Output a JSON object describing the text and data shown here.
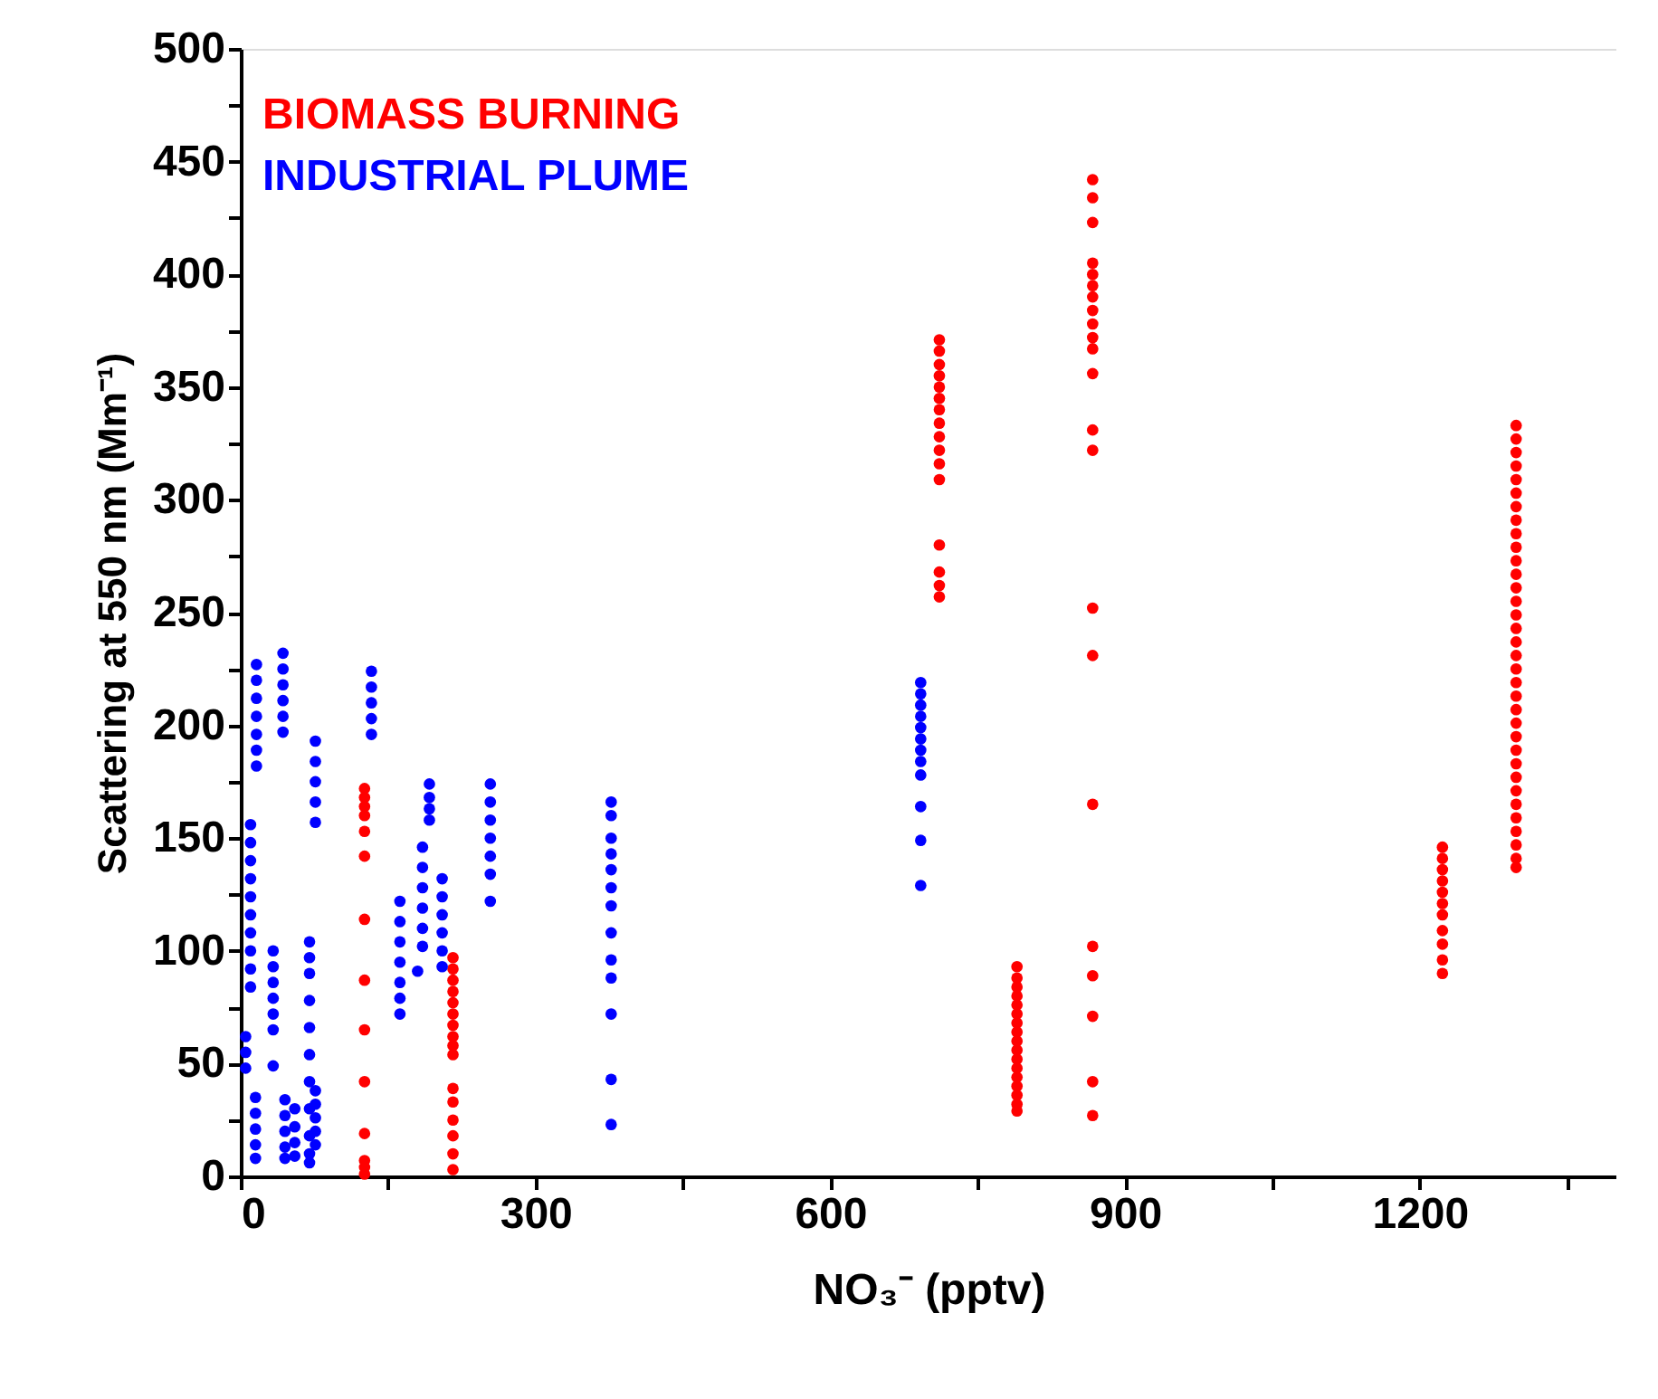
{
  "chart_data": {
    "type": "scatter",
    "xlabel": "NO₃⁻ (pptv)",
    "ylabel": "Scattering at 550 nm (Mm⁻¹)",
    "xlim": [
      0,
      1400
    ],
    "xticks": [
      0,
      {
        "value": 150,
        "label": null
      },
      300,
      {
        "value": 450,
        "label": null
      },
      600,
      {
        "value": 750,
        "label": null
      },
      900,
      {
        "value": 1050,
        "label": null
      },
      1200,
      {
        "value": 1350,
        "label": null
      }
    ],
    "ylim": [
      0,
      500
    ],
    "yticks": [
      0,
      {
        "value": 25,
        "label": null
      },
      50,
      {
        "value": 75,
        "label": null
      },
      100,
      {
        "value": 125,
        "label": null
      },
      150,
      {
        "value": 175,
        "label": null
      },
      200,
      {
        "value": 225,
        "label": null
      },
      250,
      {
        "value": 275,
        "label": null
      },
      300,
      {
        "value": 325,
        "label": null
      },
      350,
      {
        "value": 375,
        "label": null
      },
      400,
      {
        "value": 425,
        "label": null
      },
      450,
      {
        "value": 475,
        "label": null
      },
      500
    ],
    "grid": false,
    "legend": "top left",
    "marker": "circle",
    "series": [
      {
        "name": "BIOMASS BURNING",
        "color": "#ff0000",
        "x": [
          126,
          126,
          126,
          126,
          126,
          126,
          126,
          126,
          126,
          126,
          126,
          126,
          126,
          126,
          216,
          216,
          216,
          216,
          216,
          216,
          216,
          216,
          216,
          216,
          216,
          216,
          216,
          216,
          216,
          216,
          711,
          711,
          711,
          711,
          711,
          711,
          711,
          711,
          711,
          711,
          711,
          711,
          711,
          711,
          711,
          711,
          790,
          790,
          790,
          790,
          790,
          790,
          790,
          790,
          790,
          790,
          790,
          790,
          790,
          790,
          790,
          790,
          790,
          867,
          867,
          867,
          867,
          867,
          867,
          867,
          867,
          867,
          867,
          867,
          867,
          867,
          867,
          867,
          867,
          867,
          867,
          867,
          867,
          867,
          867,
          1223,
          1223,
          1223,
          1223,
          1223,
          1223,
          1223,
          1223,
          1223,
          1223,
          1223,
          1298,
          1298,
          1298,
          1298,
          1298,
          1298,
          1298,
          1298,
          1298,
          1298,
          1298,
          1298,
          1298,
          1298,
          1298,
          1298,
          1298,
          1298,
          1298,
          1298,
          1298,
          1298,
          1298,
          1298,
          1298,
          1298,
          1298,
          1298,
          1298,
          1298,
          1298,
          1298,
          1298,
          1298
        ],
        "values": [
          172,
          168,
          164,
          160,
          153,
          142,
          114,
          87,
          65,
          42,
          19,
          7,
          4,
          1,
          97,
          92,
          87,
          82,
          77,
          72,
          67,
          62,
          58,
          54,
          39,
          33,
          25,
          18,
          10,
          3,
          371,
          366,
          360,
          355,
          350,
          345,
          340,
          334,
          328,
          322,
          316,
          309,
          280,
          268,
          262,
          257,
          93,
          88,
          84,
          80,
          76,
          72,
          68,
          64,
          60,
          56,
          52,
          48,
          44,
          40,
          36,
          32,
          29,
          442,
          434,
          423,
          405,
          400,
          395,
          390,
          384,
          378,
          372,
          367,
          356,
          331,
          322,
          252,
          231,
          165,
          102,
          89,
          71,
          42,
          27,
          146,
          141,
          136,
          131,
          126,
          121,
          116,
          109,
          103,
          96,
          90,
          333,
          327,
          321,
          315,
          309,
          303,
          297,
          291,
          285,
          279,
          273,
          267,
          261,
          255,
          249,
          243,
          237,
          231,
          225,
          219,
          213,
          207,
          201,
          195,
          189,
          183,
          177,
          171,
          165,
          159,
          153,
          147,
          141,
          137
        ]
      },
      {
        "name": "INDUSTRIAL PLUME",
        "color": "#0000ff",
        "x": [
          10,
          10,
          10,
          10,
          10,
          10,
          10,
          10,
          10,
          10,
          5,
          5,
          5,
          16,
          16,
          16,
          16,
          16,
          16,
          16,
          43,
          43,
          43,
          43,
          43,
          43,
          76,
          76,
          76,
          76,
          76,
          33,
          33,
          33,
          33,
          33,
          33,
          33,
          15,
          15,
          15,
          15,
          15,
          70,
          70,
          70,
          70,
          70,
          70,
          70,
          70,
          70,
          70,
          70,
          76,
          76,
          76,
          76,
          76,
          45,
          45,
          45,
          45,
          45,
          55,
          55,
          55,
          55,
          133,
          133,
          133,
          133,
          133,
          162,
          162,
          162,
          162,
          162,
          162,
          162,
          185,
          185,
          185,
          185,
          185,
          185,
          180,
          192,
          192,
          192,
          192,
          205,
          205,
          205,
          205,
          205,
          205,
          254,
          254,
          254,
          254,
          254,
          254,
          254,
          377,
          377,
          377,
          377,
          377,
          377,
          377,
          377,
          377,
          377,
          377,
          377,
          377,
          692,
          692,
          692,
          692,
          692,
          692,
          692,
          692,
          692,
          692,
          692,
          692
        ],
        "values": [
          156,
          148,
          140,
          132,
          124,
          116,
          108,
          100,
          92,
          84,
          62,
          55,
          48,
          227,
          220,
          212,
          204,
          196,
          189,
          182,
          232,
          225,
          218,
          211,
          204,
          197,
          193,
          184,
          175,
          166,
          157,
          100,
          93,
          86,
          79,
          72,
          65,
          49,
          35,
          28,
          21,
          14,
          8,
          104,
          97,
          90,
          78,
          66,
          54,
          42,
          30,
          18,
          10,
          6,
          38,
          32,
          26,
          20,
          14,
          34,
          27,
          20,
          13,
          8,
          30,
          22,
          15,
          9,
          224,
          217,
          210,
          203,
          196,
          122,
          113,
          104,
          95,
          86,
          79,
          72,
          146,
          137,
          128,
          119,
          110,
          102,
          91,
          174,
          168,
          163,
          158,
          132,
          124,
          116,
          108,
          100,
          93,
          174,
          166,
          158,
          150,
          142,
          134,
          122,
          166,
          160,
          150,
          143,
          136,
          128,
          120,
          108,
          96,
          88,
          72,
          43,
          23,
          219,
          214,
          209,
          204,
          199,
          194,
          189,
          184,
          178,
          164,
          149,
          129
        ]
      }
    ]
  }
}
